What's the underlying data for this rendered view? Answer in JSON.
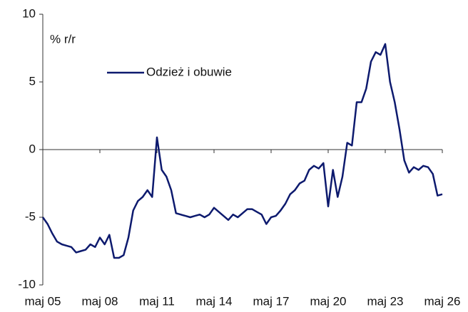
{
  "chart_data": {
    "type": "line",
    "annotation": "% r/r",
    "categories": [
      "maj 05",
      null,
      null,
      null,
      null,
      null,
      null,
      null,
      null,
      null,
      null,
      null,
      "maj 08",
      null,
      null,
      null,
      null,
      null,
      null,
      null,
      null,
      null,
      null,
      null,
      "maj 11",
      null,
      null,
      null,
      null,
      null,
      null,
      null,
      null,
      null,
      null,
      null,
      "maj 14",
      null,
      null,
      null,
      null,
      null,
      null,
      null,
      null,
      null,
      null,
      null,
      "maj 17",
      null,
      null,
      null,
      null,
      null,
      null,
      null,
      null,
      null,
      null,
      null,
      "maj 20",
      null,
      null,
      null,
      null,
      null,
      null,
      null,
      null,
      null,
      null,
      null,
      "maj 23",
      null,
      null,
      null,
      null,
      null,
      null,
      null,
      null,
      null,
      null,
      null,
      "maj 26"
    ],
    "series": [
      {
        "name": "Odzież i obuwie",
        "color": "#0d1a6e",
        "values": [
          -5,
          -5.5,
          -6.2,
          -6.8,
          -7.0,
          -7.1,
          -7.2,
          -7.6,
          -7.5,
          -7.4,
          -7.0,
          -7.2,
          -6.5,
          -7.0,
          -6.3,
          -8.0,
          -8.0,
          -7.8,
          -6.5,
          -4.5,
          -3.8,
          -3.5,
          -3.0,
          -3.5,
          0.9,
          -1.5,
          -2.0,
          -3.0,
          -4.7,
          -4.8,
          -4.9,
          -5.0,
          -4.9,
          -4.8,
          -5.0,
          -4.8,
          -4.3,
          -4.6,
          -4.9,
          -5.2,
          -4.8,
          -5.0,
          -4.7,
          -4.4,
          -4.4,
          -4.6,
          -4.8,
          -5.5,
          -5.0,
          -4.9,
          -4.5,
          -4.0,
          -3.3,
          -3.0,
          -2.5,
          -2.3,
          -1.5,
          -1.2,
          -1.4,
          -1.0,
          -4.2,
          -1.5,
          -3.5,
          -2.0,
          0.5,
          0.3,
          3.5,
          3.5,
          4.5,
          6.5,
          7.2,
          7.0,
          7.8,
          5.0,
          3.5,
          1.5,
          -0.8,
          -1.7,
          -1.3,
          -1.5,
          -1.2,
          -1.3,
          -1.8,
          -3.4,
          -3.3
        ]
      }
    ],
    "ylim": [
      -10,
      10
    ],
    "yticks": [
      -10,
      -5,
      0,
      5,
      10
    ],
    "grid": false,
    "legend": "upper left"
  }
}
